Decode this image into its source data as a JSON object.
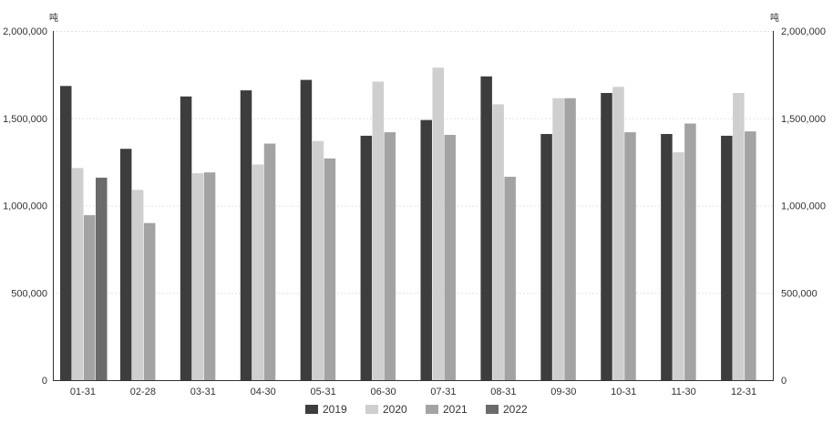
{
  "chart_data": {
    "type": "bar",
    "unit_left": "吨",
    "unit_right": "吨",
    "categories": [
      "01-31",
      "02-28",
      "03-31",
      "04-30",
      "05-31",
      "06-30",
      "07-31",
      "08-31",
      "09-30",
      "10-31",
      "11-30",
      "12-31"
    ],
    "series": [
      {
        "name": "2019",
        "color": "#3d3d3d",
        "values": [
          1685000,
          1325000,
          1625000,
          1660000,
          1720000,
          1400000,
          1490000,
          1740000,
          1410000,
          1645000,
          1410000,
          1400000
        ]
      },
      {
        "name": "2020",
        "color": "#cfcfcf",
        "values": [
          1215000,
          1090000,
          1185000,
          1235000,
          1370000,
          1710000,
          1790000,
          1580000,
          1615000,
          1680000,
          1305000,
          1645000
        ]
      },
      {
        "name": "2021",
        "color": "#a3a3a3",
        "values": [
          945000,
          900000,
          1190000,
          1355000,
          1270000,
          1420000,
          1405000,
          1165000,
          1615000,
          1420000,
          1470000,
          1425000
        ]
      },
      {
        "name": "2022",
        "color": "#6b6b6b",
        "values": [
          1160000,
          null,
          null,
          null,
          null,
          null,
          null,
          null,
          null,
          null,
          null,
          null
        ]
      }
    ],
    "y_ticks": [
      "0",
      "500,000",
      "1,000,000",
      "1,500,000",
      "2,000,000"
    ],
    "ylim": [
      0,
      2000000
    ],
    "grid": true,
    "legend_position": "bottom-center"
  }
}
